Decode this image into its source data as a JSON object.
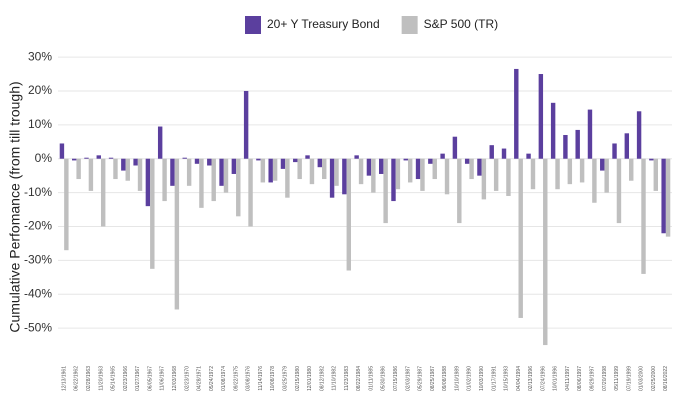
{
  "chart_data": {
    "type": "bar",
    "y_label": "Cumulative Perfomance (from till trough)",
    "categories": [
      "12/13/1961",
      "06/22/1962",
      "02/28/1963",
      "11/20/1963",
      "05/14/1965",
      "02/23/1966",
      "01/27/1967",
      "06/05/1967",
      "11/06/1967",
      "12/03/1968",
      "02/23/1970",
      "04/28/1971",
      "05/24/1972",
      "01/08/1974",
      "09/22/1975",
      "03/08/1976",
      "11/14/1976",
      "10/08/1978",
      "03/25/1979",
      "02/15/1980",
      "12/01/1980",
      "08/12/1982",
      "11/10/1982",
      "11/23/1983",
      "08/22/1984",
      "01/11/1985",
      "05/30/1986",
      "07/15/1986",
      "02/03/1987",
      "05/29/1987",
      "08/25/1987",
      "09/08/1988",
      "10/10/1989",
      "01/02/1990",
      "10/03/1990",
      "01/17/1991",
      "10/15/1993",
      "04/04/1994",
      "02/13/1996",
      "07/24/1996",
      "10/01/1996",
      "04/11/1997",
      "08/06/1997",
      "09/29/1997",
      "07/20/1998",
      "05/11/1999",
      "07/19/1999",
      "01/03/2000",
      "02/25/2000",
      "08/16/2022"
    ],
    "series": [
      {
        "name": "20+ Y Treasury Bond",
        "color": "#5b3f9e",
        "values": [
          4.5,
          -0.5,
          0.3,
          1,
          0.3,
          -3.5,
          -2,
          -14,
          9.5,
          -8,
          0.3,
          -1.5,
          -2,
          -8,
          -4.5,
          20,
          -0.5,
          -7,
          -3,
          -1,
          1,
          -2.5,
          -11.5,
          -10.5,
          1,
          -5,
          -4.5,
          -12.5,
          -0.5,
          -6,
          -1.5,
          1.5,
          6.5,
          -1.5,
          -5,
          4,
          3,
          26.5,
          1.5,
          25,
          16.5,
          7,
          8.5,
          14.5,
          -3.5,
          4.5,
          7.5,
          14,
          -0.5,
          -22
        ]
      },
      {
        "name": "S&P 500 (TR)",
        "color": "#bfbfbf",
        "values": [
          -27,
          -6,
          -9.5,
          -20,
          -6,
          -6.5,
          -9.5,
          -32.5,
          -12.5,
          -44.5,
          -8,
          -14.5,
          -12.5,
          -10,
          -17,
          -20,
          -7,
          -6.5,
          -11.5,
          -6,
          -7.5,
          -6,
          -8,
          -33,
          -7.5,
          -10,
          -19,
          -9,
          -7,
          -9.5,
          -6,
          -10.5,
          -19,
          -6,
          -12,
          -9.5,
          -11,
          -47,
          -9,
          -55,
          -9,
          -7.5,
          -7,
          -13,
          -10,
          -19,
          -6.5,
          -34,
          -9.5,
          -23
        ]
      }
    ],
    "ylim": [
      -60,
      31.5
    ],
    "yticks": [
      {
        "value": -50,
        "label": "-50%"
      },
      {
        "value": -40,
        "label": "-40%"
      },
      {
        "value": -30,
        "label": "-30%"
      },
      {
        "value": -20,
        "label": "-20%"
      },
      {
        "value": -10,
        "label": "-10%"
      },
      {
        "value": 0,
        "label": "0%"
      },
      {
        "value": 10,
        "label": "10%"
      },
      {
        "value": 20,
        "label": "20%"
      },
      {
        "value": 30,
        "label": "30%"
      }
    ],
    "grid": true,
    "legend": "top"
  }
}
